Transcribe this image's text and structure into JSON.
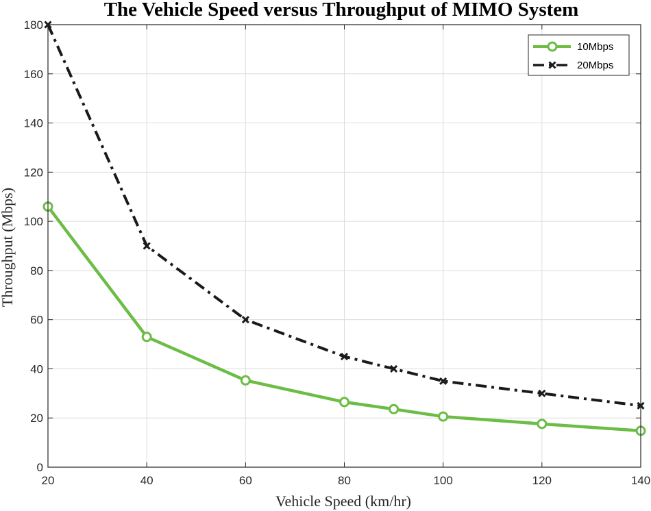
{
  "chart_data": {
    "type": "line",
    "title": "The Vehicle Speed versus Throughput of MIMO System",
    "xlabel": "Vehicle Speed (km/hr)",
    "ylabel": "Throughput (Mbps)",
    "xlim": [
      20,
      140
    ],
    "ylim": [
      0,
      180
    ],
    "xticks": [
      20,
      40,
      60,
      80,
      100,
      120,
      140
    ],
    "yticks": [
      0,
      20,
      40,
      60,
      80,
      100,
      120,
      140,
      160,
      180
    ],
    "grid": true,
    "legend_position": "top-right",
    "series": [
      {
        "name": "10Mbps",
        "color": "#6bbd45",
        "line_style": "solid",
        "marker": "circle",
        "x": [
          20,
          40,
          60,
          80,
          90,
          100,
          120,
          140
        ],
        "y": [
          106,
          53,
          35.3,
          26.5,
          23.6,
          20.6,
          17.6,
          14.8
        ]
      },
      {
        "name": "20Mbps",
        "color": "#1a1a1a",
        "line_style": "dash-dot",
        "marker": "x",
        "x": [
          20,
          40,
          60,
          80,
          90,
          100,
          120,
          140
        ],
        "y": [
          180,
          90,
          60,
          45,
          40,
          35,
          30,
          25
        ]
      }
    ]
  }
}
